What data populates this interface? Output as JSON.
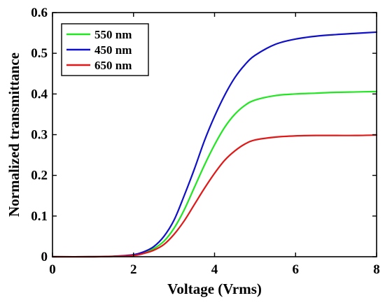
{
  "chart_data": {
    "type": "line",
    "title": "",
    "xlabel": "Voltage (Vrms)",
    "ylabel": "Normalized transmittance",
    "xlim": [
      0,
      8
    ],
    "ylim": [
      0,
      0.6
    ],
    "xticks": [
      0,
      2,
      4,
      6,
      8
    ],
    "yticks": [
      0,
      0.1,
      0.2,
      0.3,
      0.4,
      0.5,
      0.6
    ],
    "xtick_labels": [
      "0",
      "2",
      "4",
      "6",
      "8"
    ],
    "ytick_labels": [
      "0",
      "0.1",
      "0.2",
      "0.3",
      "0.4",
      "0.5",
      "0.6"
    ],
    "grid": false,
    "legend_position": "top-left",
    "series": [
      {
        "name": "550 nm",
        "color": "#22e622",
        "x": [
          0,
          1.0,
          1.5,
          2.0,
          2.25,
          2.5,
          2.75,
          3.0,
          3.25,
          3.5,
          3.75,
          4.0,
          4.25,
          4.5,
          4.75,
          5.0,
          5.5,
          6.0,
          6.5,
          7.0,
          7.5,
          8.0
        ],
        "y": [
          0.0,
          0.0,
          0.001,
          0.004,
          0.01,
          0.02,
          0.038,
          0.07,
          0.115,
          0.17,
          0.225,
          0.275,
          0.318,
          0.35,
          0.372,
          0.385,
          0.396,
          0.4,
          0.402,
          0.404,
          0.405,
          0.406
        ]
      },
      {
        "name": "450 nm",
        "color": "#1010c8",
        "x": [
          0,
          1.0,
          1.5,
          2.0,
          2.25,
          2.5,
          2.75,
          3.0,
          3.25,
          3.5,
          3.75,
          4.0,
          4.25,
          4.5,
          4.75,
          5.0,
          5.5,
          6.0,
          6.5,
          7.0,
          7.5,
          8.0
        ],
        "y": [
          0.0,
          0.0,
          0.001,
          0.005,
          0.012,
          0.025,
          0.05,
          0.09,
          0.15,
          0.215,
          0.285,
          0.345,
          0.397,
          0.44,
          0.472,
          0.495,
          0.522,
          0.535,
          0.542,
          0.546,
          0.549,
          0.552
        ]
      },
      {
        "name": "650 nm",
        "color": "#e01818",
        "x": [
          0,
          1.0,
          1.5,
          2.0,
          2.25,
          2.5,
          2.75,
          3.0,
          3.25,
          3.5,
          3.75,
          4.0,
          4.25,
          4.5,
          4.75,
          5.0,
          5.5,
          6.0,
          6.5,
          7.0,
          7.5,
          8.0
        ],
        "y": [
          0.0,
          0.0,
          0.001,
          0.003,
          0.008,
          0.016,
          0.03,
          0.055,
          0.088,
          0.128,
          0.168,
          0.205,
          0.237,
          0.26,
          0.277,
          0.287,
          0.294,
          0.297,
          0.298,
          0.298,
          0.298,
          0.299
        ]
      }
    ]
  }
}
